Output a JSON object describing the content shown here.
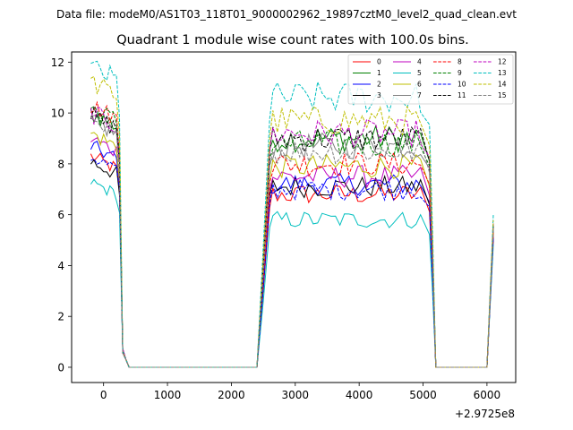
{
  "figure": {
    "suptitle": "Data file: modeM0/AS1T03_118T01_9000002962_19897cztM0_level2_quad_clean.evt"
  },
  "chart_data": {
    "type": "line",
    "title": "Quadrant 1 module wise count rates with 100.0s bins.",
    "xlabel": "",
    "ylabel": "",
    "x_offset_label": "+2.9725e8",
    "xlim": [
      -500,
      6450
    ],
    "ylim": [
      -0.6,
      12.4
    ],
    "xticks": [
      0,
      1000,
      2000,
      3000,
      4000,
      5000,
      6000
    ],
    "yticks": [
      0,
      2,
      4,
      6,
      8,
      10,
      12
    ],
    "legend": {
      "position": "top-right",
      "columns": 4
    },
    "series": [
      {
        "name": "0",
        "color": "#ff0000",
        "style": "solid",
        "level": 6.8,
        "start": 8.3
      },
      {
        "name": "1",
        "color": "#008000",
        "style": "solid",
        "level": 9.0,
        "start": 10.0
      },
      {
        "name": "2",
        "color": "#0000ff",
        "style": "solid",
        "level": 7.2,
        "start": 8.7
      },
      {
        "name": "3",
        "color": "#000000",
        "style": "solid",
        "level": 7.1,
        "start": 8.1
      },
      {
        "name": "4",
        "color": "#bf00bf",
        "style": "solid",
        "level": 7.5,
        "start": 9.0
      },
      {
        "name": "5",
        "color": "#00bfbf",
        "style": "solid",
        "level": 5.8,
        "start": 7.3
      },
      {
        "name": "6",
        "color": "#bfbf00",
        "style": "solid",
        "level": 7.9,
        "start": 9.2
      },
      {
        "name": "7",
        "color": "#808080",
        "style": "solid",
        "level": 8.7,
        "start": 9.7
      },
      {
        "name": "8",
        "color": "#ff0000",
        "style": "dashed",
        "level": 8.0,
        "start": 10.3
      },
      {
        "name": "9",
        "color": "#008000",
        "style": "dashed",
        "level": 8.8,
        "start": 10.2
      },
      {
        "name": "10",
        "color": "#0000ff",
        "style": "dashed",
        "level": 7.0,
        "start": 8.3
      },
      {
        "name": "11",
        "color": "#000000",
        "style": "dashed",
        "level": 9.0,
        "start": 9.9
      },
      {
        "name": "12",
        "color": "#bf00bf",
        "style": "dashed",
        "level": 9.2,
        "start": 10.0
      },
      {
        "name": "13",
        "color": "#00bfbf",
        "style": "dashed",
        "level": 10.6,
        "start": 11.8
      },
      {
        "name": "14",
        "color": "#bfbf00",
        "style": "dashed",
        "level": 9.7,
        "start": 11.2
      },
      {
        "name": "15",
        "color": "#808080",
        "style": "dashed",
        "level": 8.5,
        "start": 9.5
      }
    ]
  }
}
